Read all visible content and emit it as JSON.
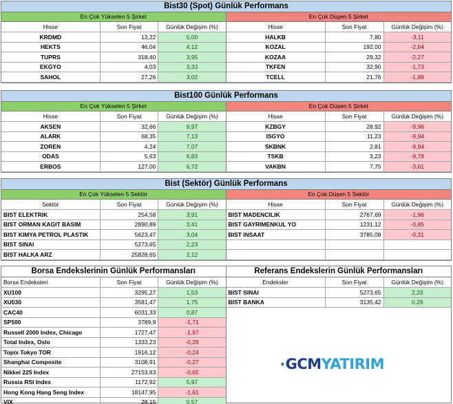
{
  "bist30": {
    "title": "Bist30 (Spot) Günlük Performans",
    "up_header": "En Çok Yükselen 5 Şirket",
    "down_header": "En Çok Düşen 5 Şirket",
    "cols": [
      "Hisse",
      "Son Fiyat",
      "Günlük Değişim (%)"
    ],
    "up": [
      [
        "KRDMD",
        "13,22",
        "5,00"
      ],
      [
        "HEKTS",
        "46,04",
        "4,12"
      ],
      [
        "TUPRS",
        "318,40",
        "3,95"
      ],
      [
        "EKGYO",
        "4,03",
        "3,33"
      ],
      [
        "SAHOL",
        "27,26",
        "3,02"
      ]
    ],
    "down": [
      [
        "HALKB",
        "7,80",
        "-3,11"
      ],
      [
        "KOZAL",
        "192,00",
        "-2,64"
      ],
      [
        "KOZAA",
        "29,32",
        "-2,27"
      ],
      [
        "TKFEN",
        "32,90",
        "-1,73"
      ],
      [
        "TCELL",
        "21,76",
        "-1,89"
      ]
    ]
  },
  "bist100": {
    "title": "Bist100 Günlük Performans",
    "up_header": "En Çok Yükselen 5 Şirket",
    "down_header": "En Çok Düşen 5 Şirket",
    "cols": [
      "Hisse",
      "Son Fiyat",
      "Günlük Değişim (%)"
    ],
    "up": [
      [
        "AKSEN",
        "32,66",
        "9,97"
      ],
      [
        "ALARK",
        "68,35",
        "7,13"
      ],
      [
        "ZOREN",
        "4,24",
        "7,07"
      ],
      [
        "ODAS",
        "5,63",
        "6,83"
      ],
      [
        "ERBOS",
        "127,00",
        "6,72"
      ]
    ],
    "down": [
      [
        "KZBGY",
        "28,92",
        "-9,96"
      ],
      [
        "ISGYO",
        "11,23",
        "-9,94"
      ],
      [
        "SKBNK",
        "2,81",
        "-9,94"
      ],
      [
        "TSKB",
        "3,23",
        "-9,78"
      ],
      [
        "VAKBN",
        "7,75",
        "-3,61"
      ]
    ]
  },
  "sektor": {
    "title": "Bist (Sektör) Günlük Performans",
    "up_header": "En Çok Yükselen 5 Sektör",
    "down_header": "En Çok Düşen 5 Sektör",
    "up_cols": [
      "Sektör",
      "Son Fiyat",
      "Günlük Değişim (%)"
    ],
    "down_cols": [
      "Hisse",
      "Son Fiyat",
      "Günlük Değişim (%)"
    ],
    "up": [
      [
        "BIST ELEKTRIK",
        "254,58",
        "3,91"
      ],
      [
        "BIST ORMAN KAGIT BASIM",
        "2890,89",
        "3,41"
      ],
      [
        "BIST KIMYA PETROL PLASTIK",
        "5623,47",
        "3,04"
      ],
      [
        "BIST SINAI",
        "5273,65",
        "2,23"
      ],
      [
        "BIST HALKA ARZ",
        "25828,65",
        "2,12"
      ]
    ],
    "down": [
      [
        "BIST MADENCILIK",
        "2767,69",
        "-1,96"
      ],
      [
        "BIST GAYRIMENKUL YO",
        "1231,12",
        "-0,85"
      ],
      [
        "BIST INSAAT",
        "3785,08",
        "-0,31"
      ],
      [
        "",
        "",
        ""
      ],
      [
        "",
        "",
        ""
      ]
    ]
  },
  "borsa": {
    "title": "Borsa Endekslerinin Günlük Performansları",
    "cols": [
      "Borsa Endeksleri",
      "Son Fiyat",
      "Günlük Değişim (%)"
    ],
    "rows": [
      [
        "XU100",
        "3295,27",
        "1,53",
        "pos"
      ],
      [
        "XU030",
        "3581,47",
        "1,75",
        "pos"
      ],
      [
        "CAC40",
        "6031,33",
        "0,87",
        "pos"
      ],
      [
        "SP500",
        "3789,9",
        "-1,71",
        "neg"
      ],
      [
        "Russell 2000 Index, Chicago",
        "1727,47",
        "-1,97",
        "neg"
      ],
      [
        "Total Index, Oslo",
        "1333,23",
        "-0,28",
        "neg"
      ],
      [
        "Topix Tokyo TOR",
        "1916,12",
        "-0,24",
        "neg"
      ],
      [
        "Shanghai Composite",
        "3108,91",
        "-0,27",
        "neg"
      ],
      [
        "Nikkei 225 Index",
        "27153,83",
        "-0,65",
        "neg"
      ],
      [
        "Russia RSI Index",
        "1172,92",
        "5,97",
        "pos"
      ],
      [
        "Hong Kong Hang Seng Index",
        "18147,95",
        "-1,61",
        "neg"
      ],
      [
        "VIX",
        "28,15",
        "0,57",
        "pos"
      ]
    ]
  },
  "referans": {
    "title": "Referans Endekslerin  Günlük Performansları",
    "cols": [
      "Endeksler",
      "Son Fiyat",
      "Günlük Değişim (%)"
    ],
    "rows": [
      [
        "BIST SINAI",
        "5273,65",
        "2,23"
      ],
      [
        "BIST BANKA",
        "3135,42",
        "0,29"
      ]
    ]
  },
  "logo": {
    "part1": "GCM",
    "part2": "YATIRIM",
    "icon": "gcm-globe-icon"
  }
}
